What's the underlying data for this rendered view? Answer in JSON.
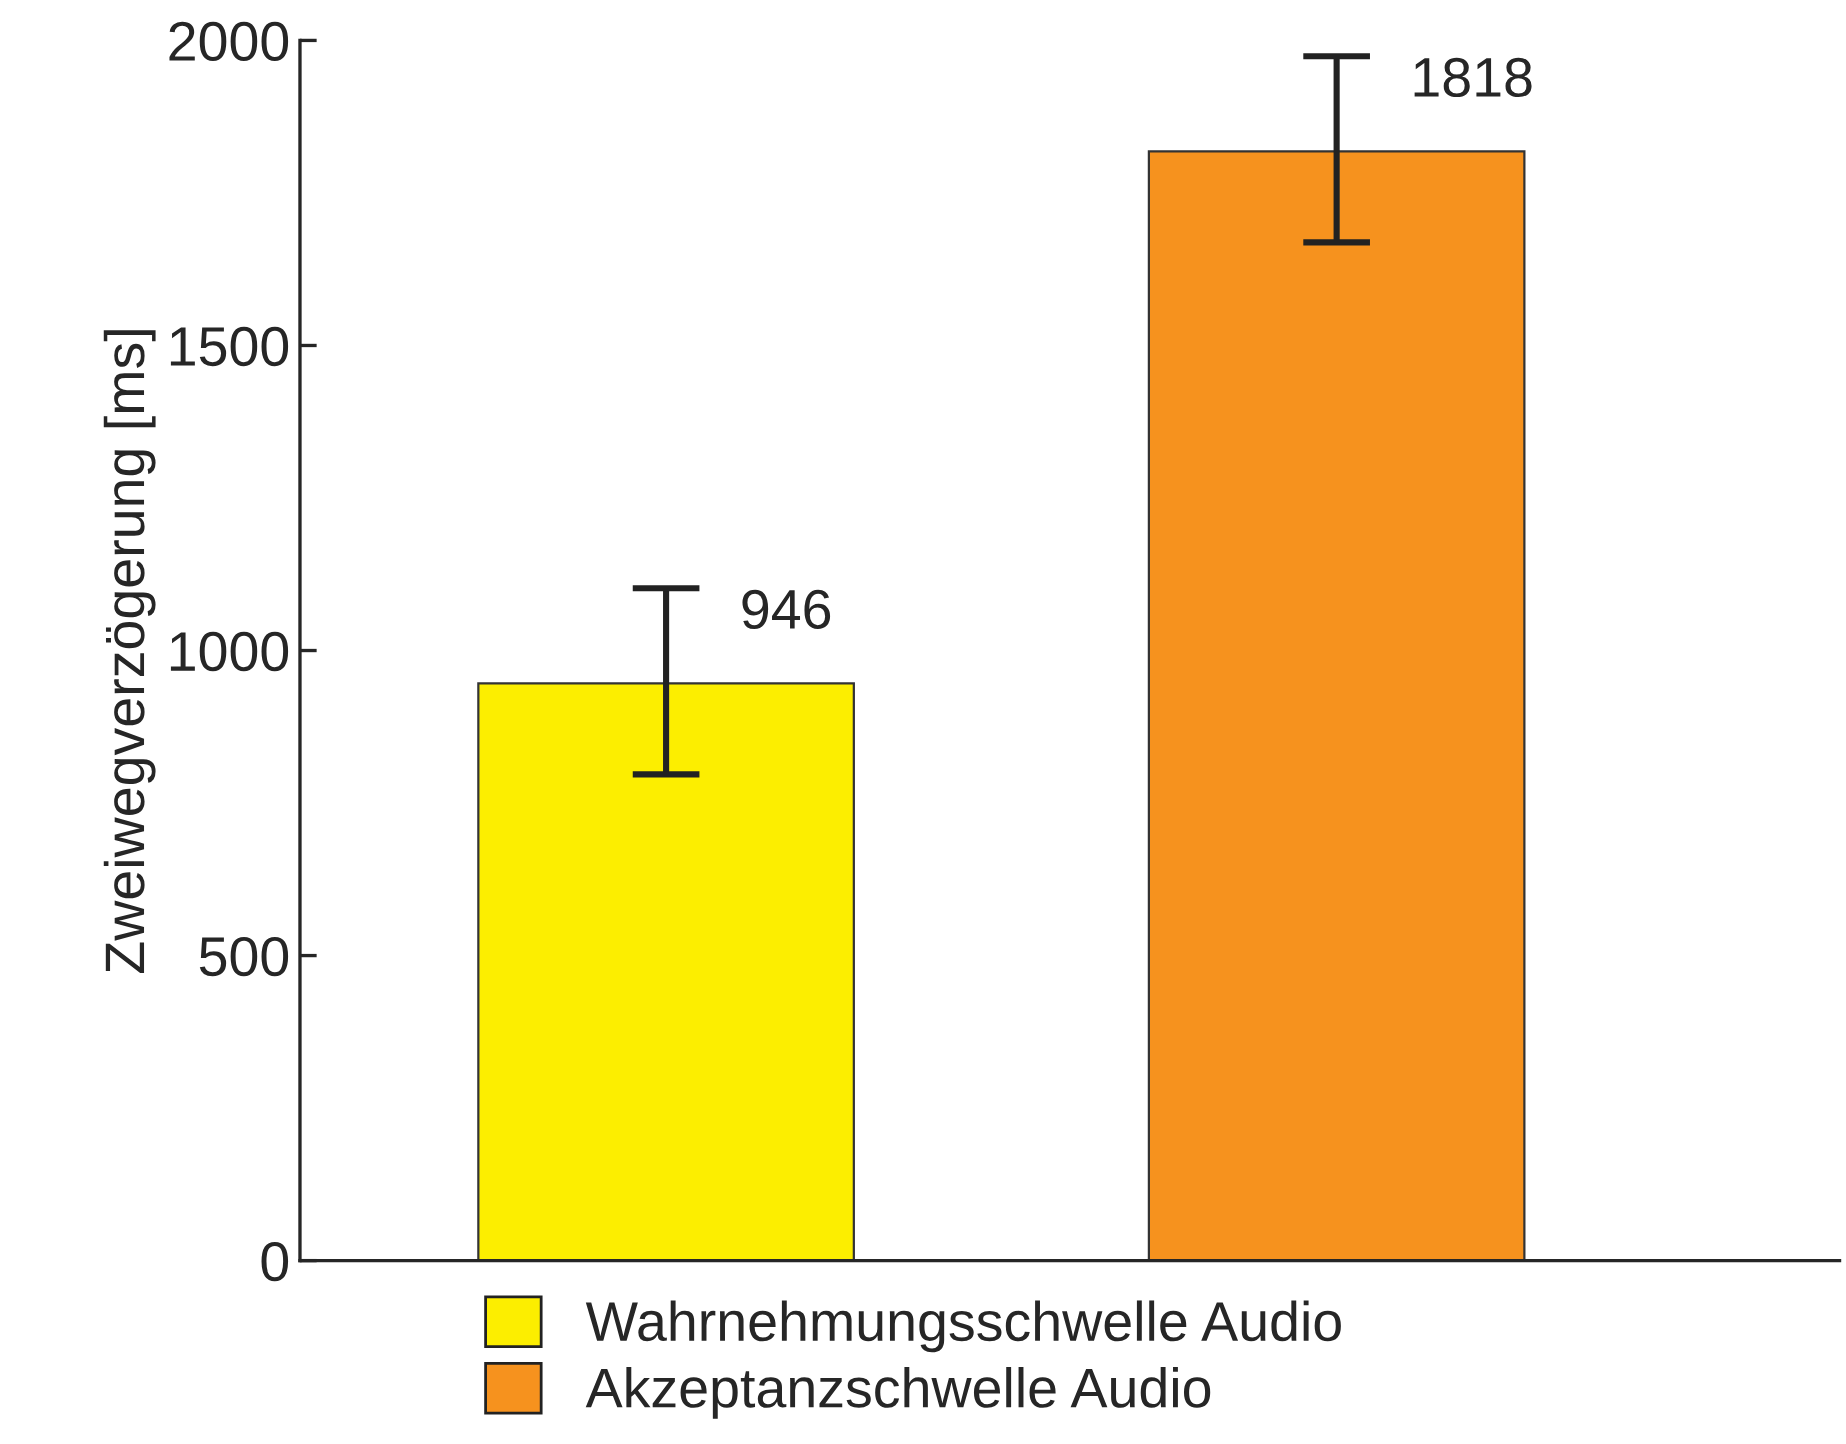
{
  "chart_data": {
    "type": "bar",
    "ylabel": "Zweiwegverzögerung [ms]",
    "categories": [
      null,
      null
    ],
    "series": [
      {
        "name": "Wahrnehmungsschwelle Audio",
        "color": "#fcee00",
        "values": [
          946,
          null
        ],
        "errors": [
          [
            797,
            1102
          ],
          null
        ],
        "value_labels": [
          "946",
          null
        ]
      },
      {
        "name": "Akzeptanzschwelle Audio",
        "color": "#f6921e",
        "values": [
          null,
          1818
        ],
        "errors": [
          null,
          [
            1669,
            1974
          ]
        ],
        "value_labels": [
          null,
          "1818"
        ]
      }
    ],
    "ylim": [
      0,
      2000
    ],
    "yticks": [
      0,
      500,
      1000,
      1500,
      2000
    ],
    "grid": false,
    "legend": "bottom"
  }
}
